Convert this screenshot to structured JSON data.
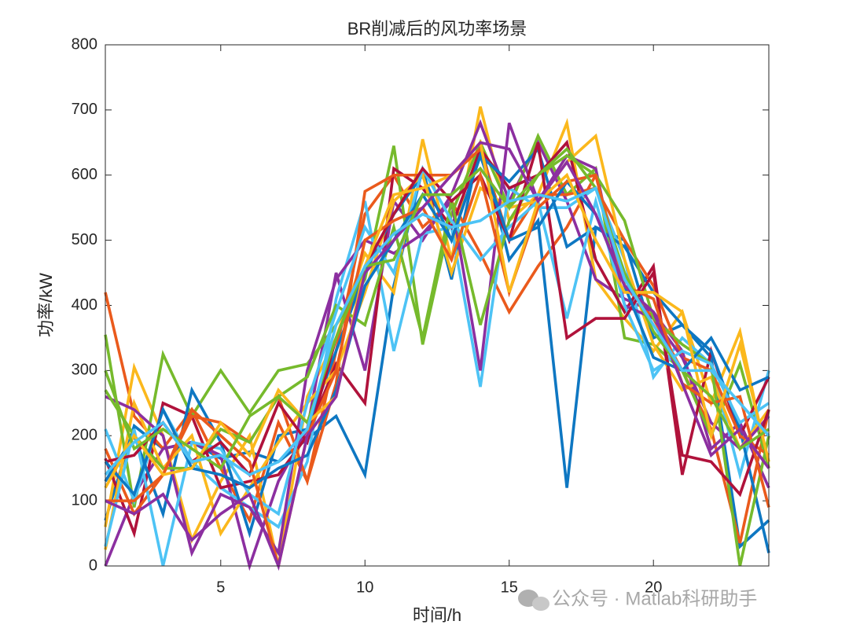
{
  "chart_data": {
    "type": "line",
    "title": "BR削减后的风功率场景",
    "x_label": "时间/h",
    "y_label": "功率/kW",
    "x": [
      1,
      2,
      3,
      4,
      5,
      6,
      7,
      8,
      9,
      10,
      11,
      12,
      13,
      14,
      15,
      16,
      17,
      18,
      19,
      20,
      21,
      22,
      23,
      24
    ],
    "xlim": [
      1,
      24
    ],
    "xticks": [
      5,
      10,
      15,
      20
    ],
    "ylim": [
      0,
      800
    ],
    "yticks": [
      0,
      100,
      200,
      300,
      400,
      500,
      600,
      700,
      800
    ],
    "grid": false,
    "series": [
      {
        "color": "#0e77c2",
        "values": [
          70,
          215,
          180,
          190,
          165,
          175,
          160,
          195,
          230,
          140,
          430,
          610,
          440,
          650,
          470,
          530,
          120,
          520,
          500,
          350,
          370,
          320,
          30,
          70
        ]
      },
      {
        "color": "#ea5a1c",
        "values": [
          420,
          230,
          180,
          240,
          150,
          70,
          220,
          130,
          330,
          540,
          600,
          520,
          560,
          480,
          390,
          460,
          520,
          600,
          430,
          380,
          300,
          210,
          35,
          240
        ]
      },
      {
        "color": "#fbb81c",
        "values": [
          60,
          305,
          200,
          40,
          130,
          200,
          0,
          260,
          350,
          480,
          420,
          655,
          470,
          705,
          530,
          570,
          680,
          440,
          380,
          330,
          390,
          250,
          360,
          150
        ]
      },
      {
        "color": "#8c2fa0",
        "values": [
          0,
          110,
          180,
          190,
          170,
          0,
          130,
          210,
          450,
          300,
          560,
          500,
          570,
          680,
          560,
          650,
          560,
          440,
          410,
          390,
          330,
          180,
          220,
          120
        ]
      },
      {
        "color": "#76ba2c",
        "values": [
          355,
          90,
          325,
          230,
          300,
          235,
          300,
          310,
          370,
          440,
          645,
          340,
          540,
          650,
          550,
          660,
          570,
          610,
          350,
          340,
          300,
          200,
          310,
          150
        ]
      },
      {
        "color": "#4dc3f5",
        "values": [
          210,
          100,
          240,
          160,
          120,
          90,
          60,
          160,
          410,
          560,
          330,
          510,
          520,
          275,
          580,
          550,
          550,
          580,
          470,
          290,
          350,
          310,
          140,
          300
        ]
      },
      {
        "color": "#b0123b",
        "values": [
          165,
          50,
          250,
          230,
          120,
          130,
          140,
          200,
          310,
          250,
          610,
          580,
          520,
          640,
          580,
          600,
          650,
          470,
          390,
          460,
          140,
          330,
          200,
          290
        ]
      },
      {
        "color": "#0e77c2",
        "values": [
          130,
          200,
          80,
          270,
          190,
          50,
          200,
          210,
          330,
          450,
          540,
          600,
          500,
          630,
          590,
          640,
          490,
          520,
          490,
          420,
          370,
          330,
          210,
          20
        ]
      },
      {
        "color": "#ea5a1c",
        "values": [
          180,
          80,
          140,
          230,
          220,
          190,
          260,
          130,
          280,
          575,
          600,
          600,
          600,
          640,
          500,
          570,
          570,
          580,
          500,
          430,
          320,
          300,
          200,
          170
        ]
      },
      {
        "color": "#fbb81c",
        "values": [
          25,
          250,
          150,
          200,
          50,
          120,
          190,
          250,
          300,
          420,
          560,
          600,
          450,
          580,
          550,
          560,
          620,
          660,
          470,
          340,
          270,
          290,
          180,
          240
        ]
      },
      {
        "color": "#8c2fa0",
        "values": [
          260,
          240,
          200,
          20,
          110,
          90,
          20,
          300,
          440,
          500,
          480,
          510,
          560,
          300,
          680,
          560,
          630,
          610,
          400,
          380,
          320,
          220,
          180,
          230
        ]
      },
      {
        "color": "#76ba2c",
        "values": [
          270,
          200,
          150,
          150,
          210,
          190,
          260,
          290,
          400,
          370,
          520,
          350,
          560,
          370,
          530,
          600,
          630,
          600,
          530,
          380,
          340,
          310,
          0,
          200
        ]
      },
      {
        "color": "#4dc3f5",
        "values": [
          30,
          210,
          0,
          190,
          180,
          110,
          80,
          250,
          390,
          520,
          450,
          610,
          530,
          470,
          520,
          560,
          380,
          560,
          400,
          300,
          330,
          310,
          220,
          250
        ]
      },
      {
        "color": "#b0123b",
        "values": [
          160,
          170,
          220,
          160,
          190,
          140,
          250,
          190,
          350,
          460,
          540,
          610,
          560,
          600,
          500,
          650,
          350,
          380,
          380,
          450,
          170,
          160,
          110,
          240
        ]
      },
      {
        "color": "#0e77c2",
        "values": [
          160,
          110,
          240,
          150,
          140,
          120,
          150,
          170,
          270,
          430,
          500,
          570,
          500,
          630,
          500,
          520,
          590,
          540,
          430,
          320,
          300,
          350,
          270,
          290
        ]
      },
      {
        "color": "#ea5a1c",
        "values": [
          100,
          100,
          140,
          240,
          200,
          160,
          0,
          200,
          300,
          500,
          530,
          550,
          470,
          600,
          420,
          550,
          590,
          600,
          430,
          410,
          280,
          250,
          260,
          90
        ]
      },
      {
        "color": "#fbb81c",
        "values": [
          120,
          200,
          140,
          150,
          220,
          170,
          270,
          220,
          260,
          460,
          570,
          580,
          600,
          650,
          420,
          560,
          600,
          500,
          420,
          420,
          390,
          200,
          340,
          160
        ]
      },
      {
        "color": "#8c2fa0",
        "values": [
          100,
          80,
          110,
          40,
          80,
          110,
          0,
          200,
          260,
          450,
          500,
          550,
          600,
          650,
          640,
          560,
          620,
          540,
          430,
          390,
          280,
          170,
          210,
          150
        ]
      },
      {
        "color": "#76ba2c",
        "values": [
          300,
          180,
          210,
          180,
          150,
          230,
          260,
          220,
          350,
          460,
          470,
          570,
          570,
          610,
          550,
          600,
          640,
          580,
          450,
          360,
          300,
          260,
          180,
          210
        ]
      },
      {
        "color": "#4dc3f5",
        "values": [
          140,
          190,
          220,
          160,
          170,
          140,
          160,
          210,
          370,
          460,
          510,
          540,
          520,
          530,
          560,
          570,
          560,
          580,
          440,
          370,
          300,
          300,
          250,
          200
        ]
      }
    ]
  },
  "watermark": "公众号 · Matlab科研助手"
}
